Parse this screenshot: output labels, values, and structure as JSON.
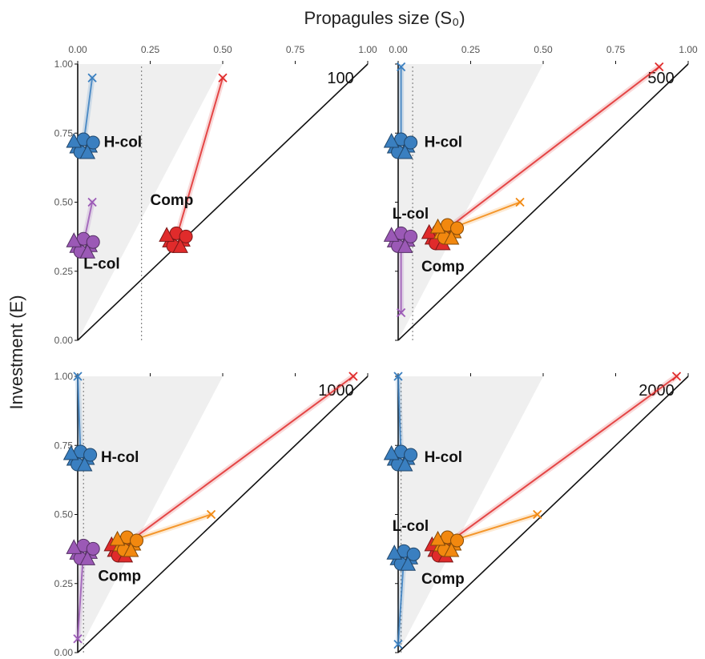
{
  "chart_data": {
    "type": "scatter",
    "xlabel": "Propagules size (S₀)",
    "ylabel": "Investment (E)",
    "xlim": [
      0,
      1
    ],
    "ylim": [
      0,
      1
    ],
    "x_ticks": [
      "0.00",
      "0.25",
      "0.50",
      "0.75",
      "1.00"
    ],
    "y_ticks": [
      "0.00",
      "0.25",
      "0.50",
      "0.75",
      "1.00"
    ],
    "colors": {
      "H-col": "#3a7fc0",
      "L-col": "#9b59b6",
      "Comp": "#e02b2b",
      "Comp-orange": "#f2880f"
    },
    "panels": [
      {
        "label": "100",
        "threshold_x": 0.22,
        "shade_top_x": 0.5,
        "groups": [
          {
            "name": "H-col",
            "color": "#3a7fc0",
            "start": [
              0.05,
              0.95
            ],
            "end": [
              0.02,
              0.71
            ]
          },
          {
            "name": "L-col",
            "color": "#9b59b6",
            "start": [
              0.05,
              0.5
            ],
            "end": [
              0.02,
              0.35
            ]
          },
          {
            "name": "Comp",
            "color": "#e02b2b",
            "start": [
              0.5,
              0.95
            ],
            "end": [
              0.34,
              0.37
            ]
          }
        ],
        "labels": [
          {
            "text": "H-col",
            "x": 0.09,
            "y": 0.7
          },
          {
            "text": "L-col",
            "x": 0.02,
            "y": 0.26
          },
          {
            "text": "Comp",
            "x": 0.25,
            "y": 0.49
          }
        ]
      },
      {
        "label": "500",
        "threshold_x": 0.05,
        "shade_top_x": 0.5,
        "groups": [
          {
            "name": "H-col",
            "color": "#3a7fc0",
            "start": [
              0.01,
              0.99
            ],
            "end": [
              0.01,
              0.71
            ]
          },
          {
            "name": "L-col",
            "color": "#9b59b6",
            "start": [
              0.01,
              0.1
            ],
            "end": [
              0.01,
              0.37
            ]
          },
          {
            "name": "Comp",
            "color": "#e02b2b",
            "start": [
              0.9,
              0.99
            ],
            "end": [
              0.14,
              0.38
            ]
          },
          {
            "name": "Comp",
            "color": "#f2880f",
            "start": [
              0.42,
              0.5
            ],
            "end": [
              0.17,
              0.4
            ]
          }
        ],
        "labels": [
          {
            "text": "H-col",
            "x": 0.09,
            "y": 0.7
          },
          {
            "text": "L-col",
            "x": -0.02,
            "y": 0.44
          },
          {
            "text": "Comp",
            "x": 0.08,
            "y": 0.25
          }
        ]
      },
      {
        "label": "1000",
        "threshold_x": 0.02,
        "shade_top_x": 0.5,
        "groups": [
          {
            "name": "H-col",
            "color": "#3a7fc0",
            "start": [
              0.0,
              1.0
            ],
            "end": [
              0.01,
              0.71
            ]
          },
          {
            "name": "L-col",
            "color": "#9b59b6",
            "start": [
              0.0,
              0.05
            ],
            "end": [
              0.02,
              0.37
            ]
          },
          {
            "name": "Comp",
            "color": "#e02b2b",
            "start": [
              0.95,
              1.0
            ],
            "end": [
              0.15,
              0.38
            ]
          },
          {
            "name": "Comp",
            "color": "#f2880f",
            "start": [
              0.46,
              0.5
            ],
            "end": [
              0.17,
              0.4
            ]
          }
        ],
        "labels": [
          {
            "text": "H-col",
            "x": 0.08,
            "y": 0.69
          },
          {
            "text": "Comp",
            "x": 0.07,
            "y": 0.26
          }
        ]
      },
      {
        "label": "2000",
        "threshold_x": 0.01,
        "shade_top_x": 0.5,
        "groups": [
          {
            "name": "H-col",
            "color": "#3a7fc0",
            "start": [
              0.0,
              1.0
            ],
            "end": [
              0.01,
              0.71
            ]
          },
          {
            "name": "L-col",
            "color": "#3a7fc0",
            "start": [
              0.0,
              0.03
            ],
            "end": [
              0.02,
              0.35
            ]
          },
          {
            "name": "Comp",
            "color": "#e02b2b",
            "start": [
              0.96,
              1.0
            ],
            "end": [
              0.15,
              0.38
            ]
          },
          {
            "name": "Comp",
            "color": "#f2880f",
            "start": [
              0.48,
              0.5
            ],
            "end": [
              0.17,
              0.4
            ]
          }
        ],
        "labels": [
          {
            "text": "H-col",
            "x": 0.09,
            "y": 0.69
          },
          {
            "text": "L-col",
            "x": -0.02,
            "y": 0.44
          },
          {
            "text": "Comp",
            "x": 0.08,
            "y": 0.25
          }
        ]
      }
    ]
  }
}
